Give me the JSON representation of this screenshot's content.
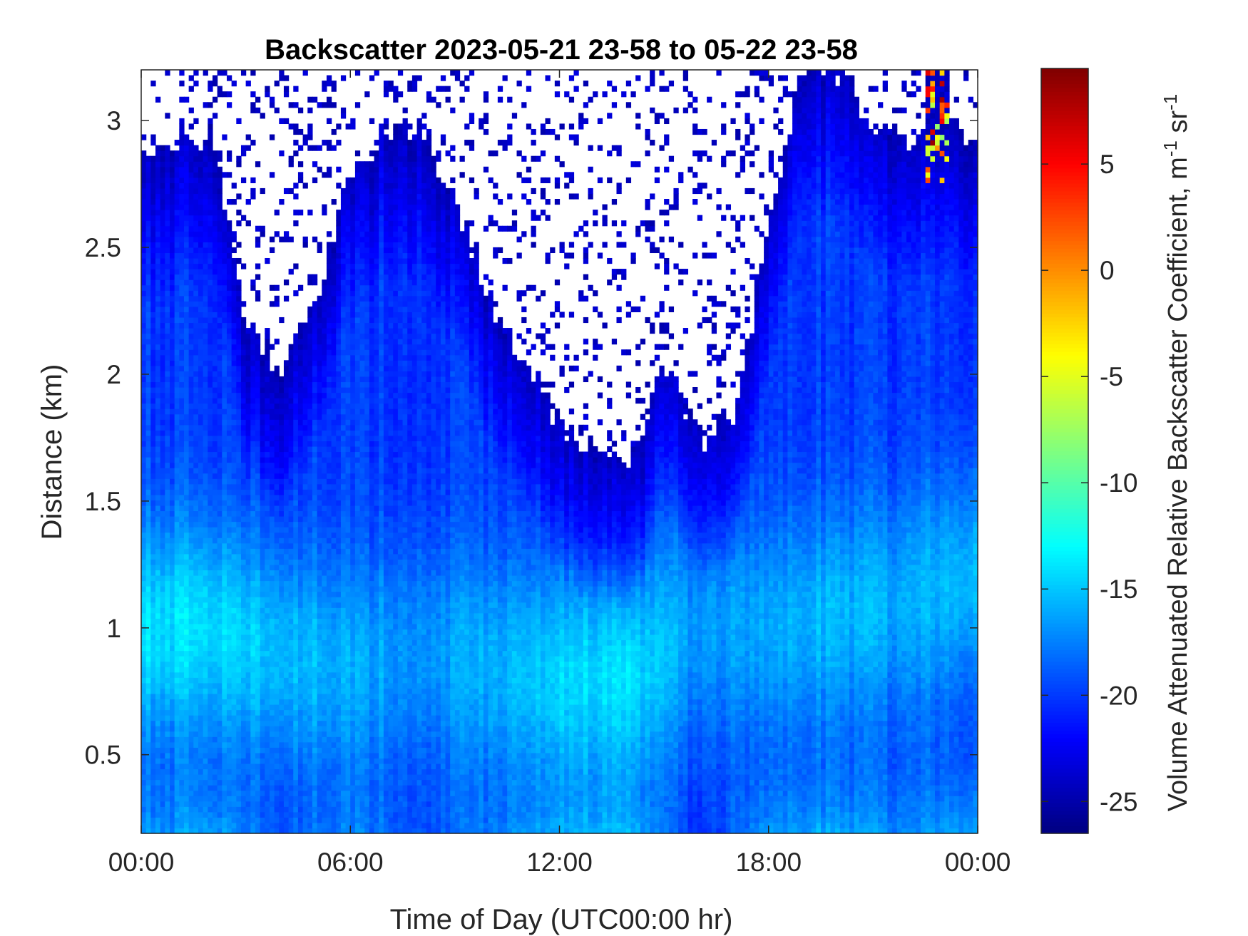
{
  "chart_data": {
    "type": "heatmap",
    "title": "Backscatter 2023-05-21 23-58 to 05-22 23-58",
    "xlabel": "Time of Day (UTC00:00 hr)",
    "ylabel": "Distance (km)",
    "colorbar_label": {
      "main": "Volume Attenuated Relative Backscatter Coefficient, m",
      "sup1": "-1",
      "mid": " sr",
      "sup2": "-1"
    },
    "x_ticks": [
      "00:00",
      "06:00",
      "12:00",
      "18:00",
      "00:00"
    ],
    "x_range_hours": [
      0,
      24
    ],
    "y_ticks": [
      "0.5",
      "1",
      "1.5",
      "2",
      "2.5",
      "3"
    ],
    "y_range_km": [
      0.19,
      3.2
    ],
    "colorbar_ticks": [
      "5",
      "0",
      "-5",
      "-10",
      "-15",
      "-20",
      "-25"
    ],
    "colorbar_range": [
      -26.5,
      9.5
    ],
    "colormap": "jet",
    "grid": false,
    "signal_top_km": {
      "hours": [
        0,
        1,
        2,
        3,
        4,
        5,
        6,
        7,
        8,
        9,
        10,
        11,
        12,
        13,
        14,
        15,
        16,
        17,
        18,
        19,
        20,
        21,
        22,
        23,
        24
      ],
      "top": [
        2.85,
        2.9,
        2.95,
        2.2,
        2.0,
        2.3,
        2.8,
        2.95,
        2.95,
        2.7,
        2.3,
        2.05,
        1.8,
        1.7,
        1.6,
        2.05,
        1.75,
        1.8,
        2.6,
        3.2,
        3.2,
        3.0,
        2.9,
        3.0,
        2.95
      ]
    },
    "band_profile": {
      "hours": [
        0,
        2,
        4,
        6,
        8,
        10,
        12,
        14,
        16,
        18,
        20,
        22,
        24
      ],
      "near_surface_value": [
        -17,
        -16,
        -19,
        -17.5,
        -19,
        -18,
        -16,
        -15.5,
        -21,
        -16.5,
        -16,
        -17,
        -15.5
      ],
      "bright_layer_km": [
        1.0,
        1.0,
        0.9,
        0.85,
        0.9,
        0.85,
        0.8,
        0.8,
        1.0,
        1.0,
        1.05,
        1.1,
        1.2
      ],
      "bright_layer_value": [
        -14,
        -14,
        -15,
        -16,
        -16.5,
        -16,
        -14.5,
        -14,
        -17,
        -16,
        -15.5,
        -16,
        -15
      ]
    },
    "aerosol_hotspot": {
      "hours_range": [
        22.5,
        23.2
      ],
      "km_range": [
        2.75,
        3.2
      ],
      "max_value": 9
    }
  }
}
